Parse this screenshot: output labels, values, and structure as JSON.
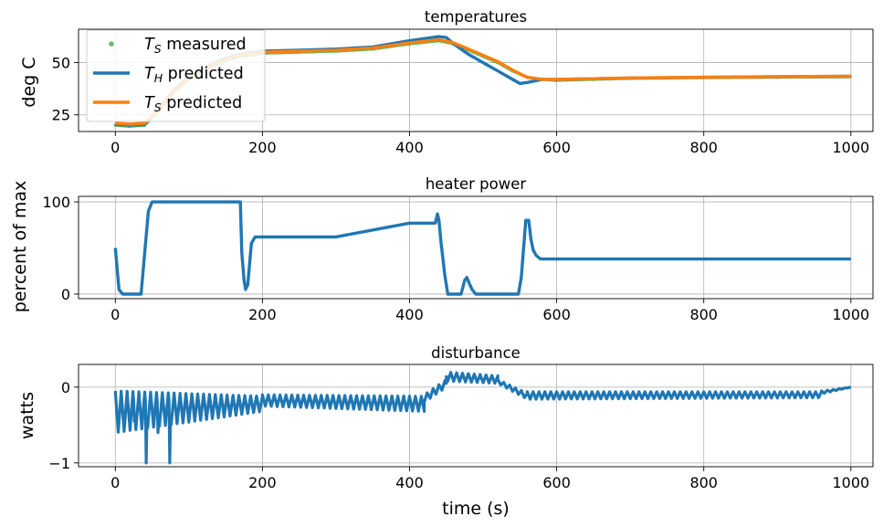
{
  "chart_data": [
    {
      "type": "line",
      "title": "temperatures",
      "xlabel": "",
      "ylabel": "deg C",
      "xlim": [
        -50,
        1030
      ],
      "ylim": [
        17,
        66
      ],
      "xticks": [
        0,
        200,
        400,
        600,
        800,
        1000
      ],
      "yticks": [
        25,
        50
      ],
      "grid": true,
      "legend_location": "upper left",
      "series": [
        {
          "name": "T_S measured",
          "legend_prefix": "T",
          "legend_sub": "S",
          "legend_suffix": " measured",
          "style": "markers",
          "color": "#2ca02c",
          "x": [
            0,
            20,
            40,
            60,
            80,
            100,
            130,
            150,
            170,
            190,
            200,
            250,
            300,
            350,
            400,
            440,
            460,
            480,
            500,
            520,
            540,
            560,
            580,
            600,
            650,
            700,
            800,
            900,
            1000
          ],
          "y": [
            20,
            19.5,
            20,
            27,
            36,
            42,
            48,
            51,
            53,
            54,
            54.5,
            55,
            55.5,
            56.5,
            59,
            60.5,
            59,
            56,
            53,
            50,
            46,
            43,
            42,
            41.5,
            42,
            42.5,
            42.8,
            43,
            43.2
          ]
        },
        {
          "name": "T_H predicted",
          "legend_prefix": "T",
          "legend_sub": "H",
          "legend_suffix": " predicted",
          "style": "line",
          "color": "#1f77b4",
          "x": [
            0,
            20,
            40,
            60,
            80,
            100,
            130,
            150,
            170,
            190,
            200,
            250,
            300,
            350,
            400,
            440,
            450,
            460,
            480,
            500,
            520,
            540,
            550,
            560,
            580,
            600,
            650,
            700,
            800,
            900,
            1000
          ],
          "y": [
            20.5,
            20,
            20.5,
            28,
            37,
            43,
            49,
            52,
            54,
            55,
            55.5,
            56,
            56.5,
            57.5,
            60.5,
            62.5,
            62,
            59,
            54,
            50,
            46,
            42,
            40,
            40.5,
            42,
            42,
            42.3,
            42.6,
            43,
            43.3,
            43.5
          ]
        },
        {
          "name": "T_S predicted",
          "legend_prefix": "T",
          "legend_sub": "S",
          "legend_suffix": " predicted",
          "style": "line",
          "color": "#ff7f0e",
          "x": [
            0,
            20,
            40,
            60,
            80,
            100,
            130,
            150,
            170,
            190,
            200,
            250,
            300,
            350,
            400,
            440,
            460,
            480,
            500,
            520,
            540,
            560,
            580,
            600,
            650,
            700,
            800,
            900,
            1000
          ],
          "y": [
            21,
            20.5,
            21,
            27.5,
            36.5,
            42.5,
            48.5,
            51.5,
            53.5,
            54.5,
            55,
            55.5,
            56,
            57,
            59.5,
            61,
            59.5,
            56.5,
            53.5,
            50.5,
            46.5,
            43,
            42,
            42,
            42.3,
            42.7,
            43,
            43.3,
            43.5
          ]
        }
      ]
    },
    {
      "type": "line",
      "title": "heater power",
      "xlabel": "",
      "ylabel": "percent of max",
      "xlim": [
        -50,
        1030
      ],
      "ylim": [
        -5,
        106
      ],
      "xticks": [
        0,
        200,
        400,
        600,
        800,
        1000
      ],
      "yticks": [
        0,
        100
      ],
      "grid": true,
      "series": [
        {
          "color": "#1f77b4",
          "x": [
            0,
            5,
            10,
            35,
            40,
            45,
            50,
            170,
            172,
            175,
            177,
            180,
            185,
            190,
            300,
            400,
            435,
            438,
            440,
            443,
            448,
            452,
            455,
            465,
            470,
            475,
            478,
            482,
            485,
            490,
            548,
            552,
            555,
            558,
            562,
            565,
            568,
            572,
            578,
            1000
          ],
          "y": [
            50,
            5,
            0,
            0,
            45,
            90,
            100,
            100,
            45,
            15,
            5,
            10,
            55,
            62,
            62,
            77,
            77,
            87,
            80,
            55,
            20,
            0,
            0,
            0,
            0,
            15,
            18,
            10,
            5,
            0,
            0,
            18,
            50,
            80,
            80,
            60,
            48,
            42,
            38,
            38
          ]
        }
      ]
    },
    {
      "type": "line",
      "title": "disturbance",
      "xlabel": "time (s)",
      "ylabel": "watts",
      "xlim": [
        -50,
        1030
      ],
      "ylim": [
        -1.05,
        0.3
      ],
      "xticks": [
        0,
        200,
        400,
        600,
        800,
        1000
      ],
      "yticks": [
        -1,
        0
      ],
      "grid": true,
      "series": [
        {
          "color": "#1f77b4",
          "segments": [
            {
              "x0": 0,
              "x1": 200,
              "trend0": -0.05,
              "trend1": -0.12,
              "period": 8,
              "amp0": 0.55,
              "amp1": 0.2
            },
            {
              "x0": 200,
              "x1": 420,
              "trend0": -0.1,
              "trend1": -0.12,
              "period": 8,
              "amp0": 0.15,
              "amp1": 0.2
            },
            {
              "x0": 420,
              "x1": 450,
              "trend0": -0.1,
              "trend1": 0.1,
              "period": 8,
              "amp0": 0.1,
              "amp1": 0.1
            },
            {
              "x0": 450,
              "x1": 520,
              "trend0": 0.2,
              "trend1": 0.15,
              "period": 8,
              "amp0": 0.12,
              "amp1": 0.1
            },
            {
              "x0": 520,
              "x1": 560,
              "trend0": 0.1,
              "trend1": -0.08,
              "period": 8,
              "amp0": 0.05,
              "amp1": 0.08
            },
            {
              "x0": 560,
              "x1": 960,
              "trend0": -0.06,
              "trend1": -0.06,
              "period": 8,
              "amp0": 0.1,
              "amp1": 0.08
            },
            {
              "x0": 960,
              "x1": 1000,
              "trend0": -0.05,
              "trend1": 0.0,
              "period": 8,
              "amp0": 0.04,
              "amp1": 0.0
            }
          ],
          "spikes": [
            {
              "x": 42,
              "y": -1.0
            },
            {
              "x": 74,
              "y": -1.0
            },
            {
              "x": 26,
              "y": -0.45
            },
            {
              "x": 58,
              "y": -0.6
            }
          ]
        }
      ]
    }
  ]
}
